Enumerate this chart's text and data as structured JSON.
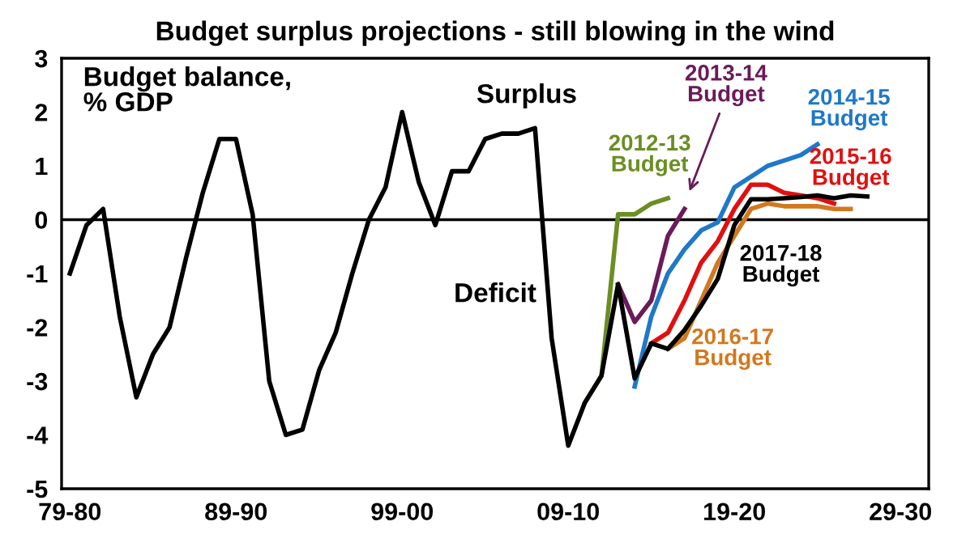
{
  "chart_data": {
    "type": "line",
    "title": "Budget surplus projections - still blowing in the wind",
    "categories": [
      "79-80",
      null,
      null,
      null,
      null,
      null,
      null,
      null,
      null,
      null,
      "89-90",
      null,
      null,
      null,
      null,
      null,
      null,
      null,
      null,
      null,
      "99-00",
      null,
      null,
      null,
      null,
      null,
      null,
      null,
      null,
      null,
      "09-10",
      null,
      null,
      null,
      null,
      null,
      null,
      null,
      null,
      null,
      "19-20",
      null,
      null,
      null,
      null,
      null,
      null,
      null,
      null,
      null,
      "29-30",
      null
    ],
    "ylim": [
      -5,
      3
    ],
    "yticks": [
      -5,
      -4,
      -3,
      -2,
      -1,
      0,
      1,
      2,
      3
    ],
    "grid": false,
    "legend": false,
    "marker": "none",
    "line_style": "solid",
    "ref_lines": [
      {
        "axis": "y",
        "value": 0,
        "label": null,
        "color": "#000000"
      }
    ],
    "annotations": [
      "Budget balance,\n% GDP",
      "Surplus",
      "Deficit"
    ],
    "series": [
      {
        "name": "2012-13\nBudget",
        "color": "#6b8e23",
        "values": [
          null,
          null,
          null,
          null,
          null,
          null,
          null,
          null,
          null,
          null,
          null,
          null,
          null,
          null,
          null,
          null,
          null,
          null,
          null,
          null,
          null,
          null,
          null,
          null,
          null,
          null,
          null,
          null,
          null,
          null,
          null,
          -3.4,
          -2.9,
          0.1,
          0.1,
          0.3,
          0.4,
          null,
          null,
          null,
          null,
          null,
          null,
          null,
          null,
          null,
          null,
          null,
          null,
          null,
          null,
          null
        ]
      },
      {
        "name": "2013-14\nBudget",
        "color": "#6a1b5a",
        "values": [
          null,
          null,
          null,
          null,
          null,
          null,
          null,
          null,
          null,
          null,
          null,
          null,
          null,
          null,
          null,
          null,
          null,
          null,
          null,
          null,
          null,
          null,
          null,
          null,
          null,
          null,
          null,
          null,
          null,
          null,
          null,
          null,
          null,
          -1.2,
          -1.9,
          -1.5,
          -0.3,
          0.2,
          null,
          null,
          null,
          null,
          null,
          null,
          null,
          null,
          null,
          null,
          null,
          null,
          null,
          null
        ]
      },
      {
        "name": "2014-15\nBudget",
        "color": "#1f78c8",
        "values": [
          null,
          null,
          null,
          null,
          null,
          null,
          null,
          null,
          null,
          null,
          null,
          null,
          null,
          null,
          null,
          null,
          null,
          null,
          null,
          null,
          null,
          null,
          null,
          null,
          null,
          null,
          null,
          null,
          null,
          null,
          null,
          null,
          null,
          null,
          -3.1,
          -1.8,
          -1.0,
          -0.55,
          -0.2,
          -0.05,
          0.6,
          0.8,
          1.0,
          1.1,
          1.2,
          1.4,
          null,
          null,
          null,
          null,
          null,
          null
        ]
      },
      {
        "name": "2015-16\nBudget",
        "color": "#e01010",
        "values": [
          null,
          null,
          null,
          null,
          null,
          null,
          null,
          null,
          null,
          null,
          null,
          null,
          null,
          null,
          null,
          null,
          null,
          null,
          null,
          null,
          null,
          null,
          null,
          null,
          null,
          null,
          null,
          null,
          null,
          null,
          null,
          null,
          null,
          null,
          null,
          -2.3,
          -2.1,
          -1.5,
          -0.8,
          -0.4,
          0.2,
          0.65,
          0.65,
          0.5,
          0.45,
          0.4,
          0.3,
          null,
          null,
          null,
          null,
          null
        ]
      },
      {
        "name": "2016-17\nBudget",
        "color": "#d2781e",
        "values": [
          null,
          null,
          null,
          null,
          null,
          null,
          null,
          null,
          null,
          null,
          null,
          null,
          null,
          null,
          null,
          null,
          null,
          null,
          null,
          null,
          null,
          null,
          null,
          null,
          null,
          null,
          null,
          null,
          null,
          null,
          null,
          null,
          null,
          null,
          null,
          null,
          -2.4,
          -2.2,
          -1.5,
          -0.8,
          -0.3,
          0.2,
          0.3,
          0.25,
          0.25,
          0.25,
          0.2,
          0.2,
          null,
          null,
          null,
          null
        ]
      },
      {
        "name": "2017-18\nBudget",
        "color": "#000000",
        "values": [
          -1.0,
          -0.1,
          0.2,
          -1.8,
          -3.3,
          -2.5,
          -2.0,
          -0.7,
          0.5,
          1.5,
          1.5,
          0.1,
          -3.0,
          -4.0,
          -3.9,
          -2.8,
          -2.1,
          -1.0,
          0.0,
          0.6,
          2.0,
          0.7,
          -0.1,
          0.9,
          0.9,
          1.5,
          1.6,
          1.6,
          1.7,
          -2.2,
          -4.2,
          -3.4,
          -2.9,
          -1.2,
          -2.95,
          -2.3,
          -2.4,
          -2.05,
          -1.6,
          -1.1,
          -0.1,
          0.38,
          0.38,
          0.4,
          0.42,
          0.45,
          0.4,
          0.45,
          0.43,
          null,
          null,
          null
        ]
      }
    ]
  }
}
